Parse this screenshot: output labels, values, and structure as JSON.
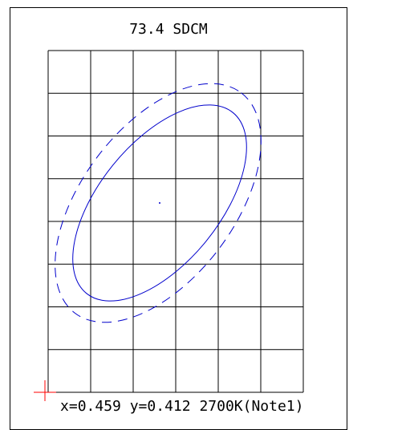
{
  "chart_data": {
    "type": "scatter",
    "title": "73.4 SDCM",
    "grid": true,
    "grid_columns": 6,
    "grid_rows": 8,
    "center_point": {
      "visible": true
    },
    "ellipses": [
      {
        "name": "",
        "style": "solid",
        "color": "#0000cc"
      },
      {
        "name": "",
        "style": "dashed",
        "color": "#0000cc"
      }
    ],
    "marker": {
      "type": "cross",
      "color": "#ff0000"
    },
    "readout": {
      "x_label": "x=",
      "x_value": "0.459",
      "y_label": "y=",
      "y_value": "0.412",
      "cct": "2700K(Note1)"
    }
  },
  "colors": {
    "frame": "#000000",
    "grid": "#000000",
    "ellipse": "#0000cc",
    "marker": "#ff0000"
  }
}
